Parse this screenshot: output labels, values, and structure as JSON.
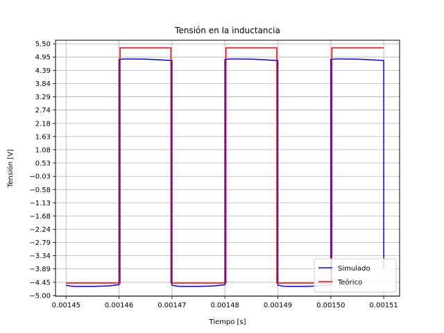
{
  "chart_data": {
    "type": "line",
    "title": "Tensión en la inductancia",
    "xlabel": "Tiempo [s]",
    "ylabel": "Tensión [V]",
    "xlim": [
      0.001448,
      0.001513
    ],
    "ylim": [
      -5.03,
      5.65
    ],
    "x_ticks": [
      0.00145,
      0.00146,
      0.00147,
      0.00148,
      0.00149,
      0.0015,
      0.00151
    ],
    "x_tick_labels": [
      "0.00145",
      "0.00146",
      "0.00147",
      "0.00148",
      "0.00149",
      "0.00150",
      "0.00151"
    ],
    "y_ticks": [
      -5.0,
      -4.45,
      -3.89,
      -3.34,
      -2.79,
      -2.24,
      -1.68,
      -1.13,
      -0.58,
      -0.03,
      0.53,
      1.08,
      1.63,
      2.18,
      2.74,
      3.29,
      3.84,
      4.39,
      4.95,
      5.5
    ],
    "y_tick_labels": [
      "−5.00",
      "−4.45",
      "−3.89",
      "−3.34",
      "−2.79",
      "−2.24",
      "−1.68",
      "−1.13",
      "−0.58",
      "−0.03",
      "0.53",
      "1.08",
      "1.63",
      "2.18",
      "2.74",
      "3.29",
      "3.84",
      "4.39",
      "4.95",
      "5.50"
    ],
    "grid": true,
    "legend_position": "lower-right",
    "series": [
      {
        "name": "Simulado",
        "color": "#0000ff",
        "x": [
          0.00145,
          0.001451,
          0.001452,
          0.001455,
          0.001458,
          0.00146,
          0.00146,
          0.001461,
          0.001462,
          0.001465,
          0.001468,
          0.00147,
          0.00147,
          0.001471,
          0.001472,
          0.001475,
          0.001478,
          0.00148,
          0.00148,
          0.001481,
          0.001482,
          0.001485,
          0.001488,
          0.00149,
          0.00149,
          0.001491,
          0.001492,
          0.001495,
          0.001498,
          0.0015,
          0.0015,
          0.001501,
          0.001502,
          0.001505,
          0.001508,
          0.00151,
          0.00151
        ],
        "y": [
          -4.57,
          -4.61,
          -4.62,
          -4.62,
          -4.6,
          -4.55,
          4.85,
          4.87,
          4.87,
          4.86,
          4.83,
          4.8,
          -4.57,
          -4.61,
          -4.62,
          -4.62,
          -4.6,
          -4.55,
          4.85,
          4.87,
          4.87,
          4.86,
          4.83,
          4.8,
          -4.57,
          -4.61,
          -4.62,
          -4.62,
          -4.6,
          -4.55,
          4.85,
          4.87,
          4.87,
          4.86,
          4.83,
          4.8,
          -3.9
        ]
      },
      {
        "name": "Teórico",
        "color": "#ff0000",
        "x": [
          0.00145,
          0.0014602,
          0.0014602,
          0.0014698,
          0.0014698,
          0.0014802,
          0.0014802,
          0.0014898,
          0.0014898,
          0.0015002,
          0.0015002,
          0.00151
        ],
        "y": [
          -4.48,
          -4.48,
          5.33,
          5.33,
          -4.48,
          -4.48,
          5.33,
          5.33,
          -4.48,
          -4.48,
          5.33,
          5.33
        ]
      }
    ]
  }
}
